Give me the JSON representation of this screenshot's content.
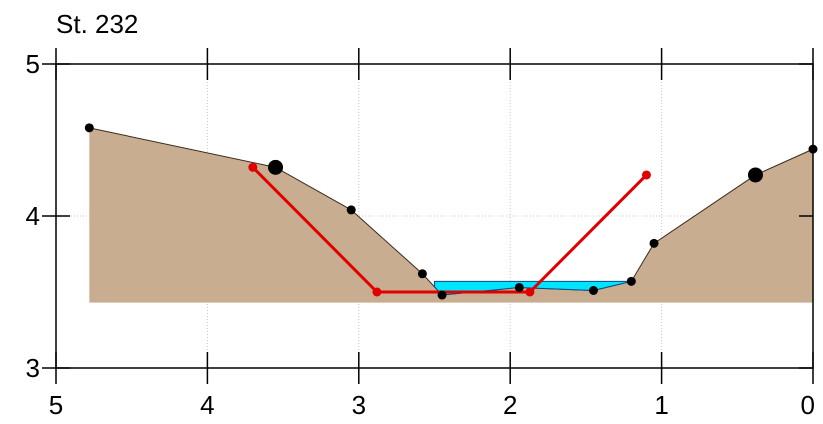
{
  "chart_data": {
    "type": "line",
    "title": "St. 232",
    "xlabel": "",
    "ylabel": "",
    "xlim": [
      5,
      0
    ],
    "ylim": [
      3,
      5
    ],
    "x_reversed": true,
    "x_ticks": [
      "5",
      "4",
      "3",
      "2",
      "1",
      "0"
    ],
    "y_ticks": [
      "3",
      "4",
      "5"
    ],
    "grid": true,
    "colors": {
      "ground_fill": "#c9ad91",
      "water_fill": "#00e5ff",
      "design_line": "#e00000",
      "survey_points": "#000000"
    },
    "ground_base": 3.43,
    "terrain": {
      "x": [
        4.78,
        3.55,
        3.05,
        2.58,
        2.45,
        1.94,
        1.45,
        1.2,
        1.05,
        0.38,
        0.0
      ],
      "y": [
        4.58,
        4.32,
        4.04,
        3.62,
        3.48,
        3.53,
        3.51,
        3.57,
        3.82,
        4.27,
        4.44
      ]
    },
    "survey_points": [
      {
        "x": 4.78,
        "y": 4.58,
        "size": "small"
      },
      {
        "x": 3.55,
        "y": 4.32,
        "size": "large"
      },
      {
        "x": 3.05,
        "y": 4.04,
        "size": "small"
      },
      {
        "x": 2.58,
        "y": 3.62,
        "size": "small"
      },
      {
        "x": 2.45,
        "y": 3.48,
        "size": "small"
      },
      {
        "x": 1.94,
        "y": 3.53,
        "size": "small"
      },
      {
        "x": 1.45,
        "y": 3.51,
        "size": "small"
      },
      {
        "x": 1.2,
        "y": 3.57,
        "size": "small"
      },
      {
        "x": 1.05,
        "y": 3.82,
        "size": "small"
      },
      {
        "x": 0.38,
        "y": 4.27,
        "size": "large"
      },
      {
        "x": 0.0,
        "y": 4.44,
        "size": "small"
      }
    ],
    "water": {
      "level": 3.57,
      "x_start": 2.5,
      "x_end": 1.2
    },
    "series": [
      {
        "x": [
          3.7,
          2.88,
          1.87,
          1.1
        ],
        "y": [
          4.32,
          3.5,
          3.5,
          4.27
        ]
      }
    ]
  }
}
